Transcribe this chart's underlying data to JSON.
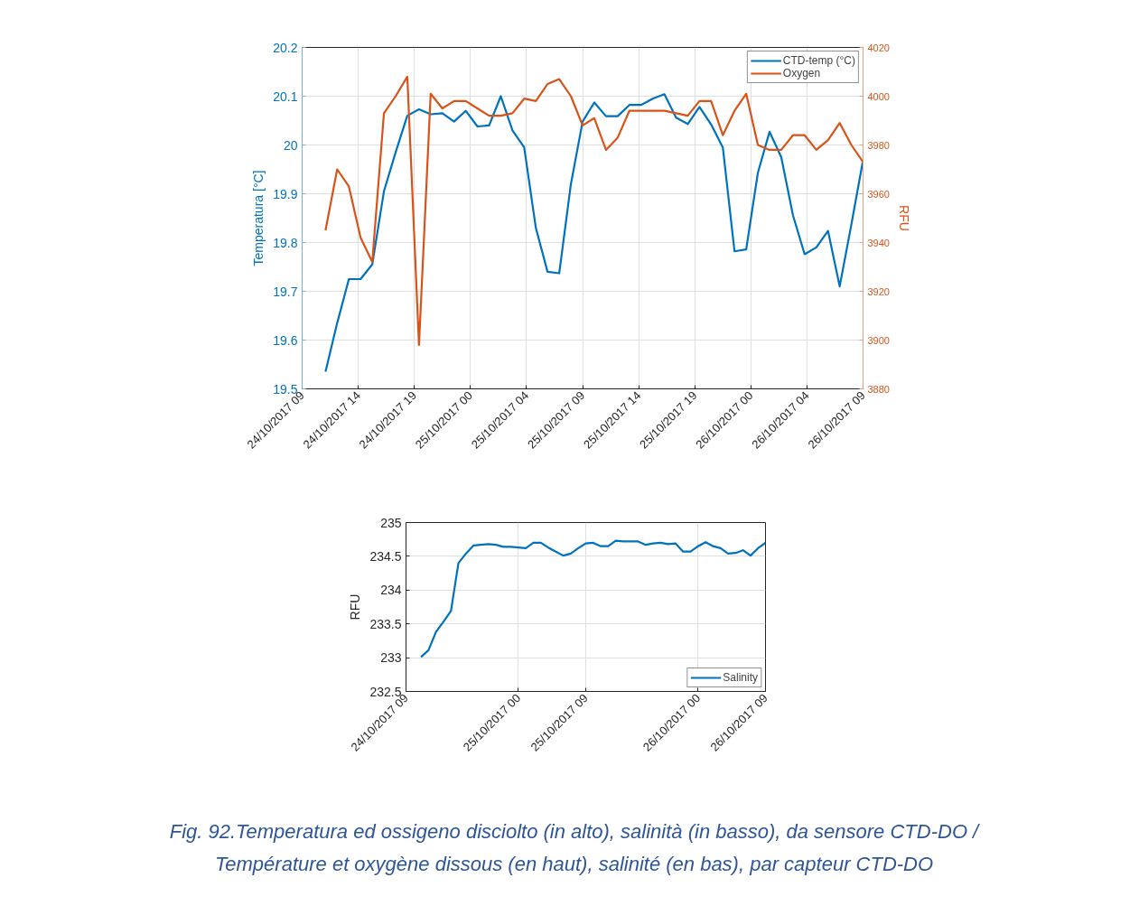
{
  "chart_data": [
    {
      "type": "line",
      "x": [
        "2017-10-24T11:00",
        "2017-10-24T12:00",
        "2017-10-24T13:00",
        "2017-10-24T14:00",
        "2017-10-24T15:00",
        "2017-10-24T16:00",
        "2017-10-24T17:00",
        "2017-10-24T18:00",
        "2017-10-24T19:00",
        "2017-10-24T20:00",
        "2017-10-24T21:00",
        "2017-10-24T22:00",
        "2017-10-24T23:00",
        "2017-10-25T00:00",
        "2017-10-25T01:00",
        "2017-10-25T02:00",
        "2017-10-25T03:00",
        "2017-10-25T04:00",
        "2017-10-25T05:00",
        "2017-10-25T06:00",
        "2017-10-25T07:00",
        "2017-10-25T08:00",
        "2017-10-25T09:00",
        "2017-10-25T10:00",
        "2017-10-25T11:00",
        "2017-10-25T12:00",
        "2017-10-25T13:00",
        "2017-10-25T14:00",
        "2017-10-25T15:00",
        "2017-10-25T16:00",
        "2017-10-25T17:00",
        "2017-10-25T18:00",
        "2017-10-25T19:00",
        "2017-10-25T20:00",
        "2017-10-25T21:00",
        "2017-10-25T22:00",
        "2017-10-25T23:00",
        "2017-10-26T00:00",
        "2017-10-26T01:00",
        "2017-10-26T02:00",
        "2017-10-26T03:00",
        "2017-10-26T04:00",
        "2017-10-26T05:00",
        "2017-10-26T06:00",
        "2017-10-26T07:00",
        "2017-10-26T08:00",
        "2017-10-26T09:00"
      ],
      "xlim": [
        "2017-10-24T09:00",
        "2017-10-26T09:00"
      ],
      "xticks": [
        {
          "value": "2017-10-24T09:00",
          "label": "24/10/2017 09"
        },
        {
          "value": "2017-10-24T13:48",
          "label": "24/10/2017 14"
        },
        {
          "value": "2017-10-24T18:36",
          "label": "24/10/2017 19"
        },
        {
          "value": "2017-10-24T23:24",
          "label": "25/10/2017 00"
        },
        {
          "value": "2017-10-25T04:12",
          "label": "25/10/2017 04"
        },
        {
          "value": "2017-10-25T09:00",
          "label": "25/10/2017 09"
        },
        {
          "value": "2017-10-25T13:48",
          "label": "25/10/2017 14"
        },
        {
          "value": "2017-10-25T18:36",
          "label": "25/10/2017 19"
        },
        {
          "value": "2017-10-25T23:24",
          "label": "26/10/2017 00"
        },
        {
          "value": "2017-10-26T04:12",
          "label": "26/10/2017 04"
        },
        {
          "value": "2017-10-26T09:00",
          "label": "26/10/2017 09"
        }
      ],
      "ylim": [
        19.5,
        20.2
      ],
      "yticks": [
        19.5,
        19.6,
        19.7,
        19.8,
        19.9,
        20,
        20.1,
        20.2
      ],
      "y2lim": [
        3880,
        4020
      ],
      "y2ticks": [
        3880,
        3900,
        3920,
        3940,
        3960,
        3980,
        4000,
        4020
      ],
      "ylabel": "Temperatura [°C]",
      "y2label": "RFU",
      "series": [
        {
          "name": "CTD-temp (°C)",
          "color": "#0072bd",
          "values": [
            19.535,
            19.635,
            19.725,
            19.725,
            19.755,
            19.905,
            19.985,
            20.06,
            20.073,
            20.063,
            20.065,
            20.048,
            20.07,
            20.038,
            20.04,
            20.1,
            20.03,
            19.995,
            19.83,
            19.74,
            19.737,
            19.92,
            20.048,
            20.087,
            20.059,
            20.059,
            20.082,
            20.082,
            20.095,
            20.104,
            20.056,
            20.043,
            20.078,
            20.042,
            19.995,
            19.782,
            19.786,
            19.943,
            20.027,
            19.975,
            19.856,
            19.776,
            19.79,
            19.824,
            19.71,
            19.837,
            19.969
          ]
        },
        {
          "name": "Oxygen",
          "color": "#d95319",
          "axis": "y2",
          "values": [
            3945,
            3970,
            3963,
            3942,
            3932,
            3993,
            4000,
            4008,
            3898,
            4001,
            3995,
            3998,
            3998,
            3995,
            3992,
            3992,
            3993,
            3999,
            3998,
            4005,
            4007,
            4000,
            3988,
            3991,
            3978,
            3983,
            3994,
            3994,
            3994,
            3994,
            3993,
            3992,
            3998,
            3998,
            3984,
            3994,
            4001,
            3980,
            3978,
            3978,
            3984,
            3984,
            3978,
            3982,
            3989,
            3980,
            3973
          ]
        }
      ],
      "grid": true,
      "legend": "top right"
    },
    {
      "type": "line",
      "x": [
        "2017-10-24T11:00",
        "2017-10-24T12:00",
        "2017-10-24T13:00",
        "2017-10-24T14:00",
        "2017-10-24T15:00",
        "2017-10-24T16:00",
        "2017-10-24T17:00",
        "2017-10-24T18:00",
        "2017-10-24T19:00",
        "2017-10-24T20:00",
        "2017-10-24T21:00",
        "2017-10-24T22:00",
        "2017-10-24T23:00",
        "2017-10-25T00:00",
        "2017-10-25T01:00",
        "2017-10-25T02:00",
        "2017-10-25T03:00",
        "2017-10-25T04:00",
        "2017-10-25T05:00",
        "2017-10-25T06:00",
        "2017-10-25T07:00",
        "2017-10-25T08:00",
        "2017-10-25T09:00",
        "2017-10-25T10:00",
        "2017-10-25T11:00",
        "2017-10-25T12:00",
        "2017-10-25T13:00",
        "2017-10-25T14:00",
        "2017-10-25T15:00",
        "2017-10-25T16:00",
        "2017-10-25T17:00",
        "2017-10-25T18:00",
        "2017-10-25T19:00",
        "2017-10-25T20:00",
        "2017-10-25T21:00",
        "2017-10-25T22:00",
        "2017-10-25T23:00",
        "2017-10-26T00:00",
        "2017-10-26T01:00",
        "2017-10-26T02:00",
        "2017-10-26T03:00",
        "2017-10-26T04:00",
        "2017-10-26T05:00",
        "2017-10-26T06:00",
        "2017-10-26T07:00",
        "2017-10-26T08:00",
        "2017-10-26T09:00"
      ],
      "xlim": [
        "2017-10-24T09:00",
        "2017-10-26T09:00"
      ],
      "xticks": [
        {
          "value": "2017-10-24T09:00",
          "label": "24/10/2017 09"
        },
        {
          "value": "2017-10-25T00:00",
          "label": "25/10/2017 00"
        },
        {
          "value": "2017-10-25T09:00",
          "label": "25/10/2017 09"
        },
        {
          "value": "2017-10-26T00:00",
          "label": "26/10/2017 00"
        },
        {
          "value": "2017-10-26T09:00",
          "label": "26/10/2017 09"
        }
      ],
      "ylim": [
        232.5,
        235
      ],
      "yticks": [
        232.5,
        233,
        233.5,
        234,
        234.5,
        235
      ],
      "ylabel": "RFU",
      "series": [
        {
          "name": "Salinity",
          "color": "#0072bd",
          "values": [
            233.01,
            233.11,
            233.38,
            233.53,
            233.69,
            234.4,
            234.54,
            234.66,
            234.67,
            234.68,
            234.67,
            234.64,
            234.64,
            234.63,
            234.62,
            234.7,
            234.7,
            234.63,
            234.57,
            234.51,
            234.54,
            234.62,
            234.69,
            234.7,
            234.65,
            234.65,
            234.73,
            234.72,
            234.72,
            234.72,
            234.67,
            234.69,
            234.7,
            234.68,
            234.69,
            234.57,
            234.57,
            234.65,
            234.71,
            234.65,
            234.62,
            234.54,
            234.55,
            234.59,
            234.51,
            234.62,
            234.7
          ]
        }
      ],
      "grid": true,
      "legend": "bottom right",
      "annotations": [
        "Fig. 92.Temperatura ed ossigeno disciolto (in alto), salinità (in basso), da sensore CTD-DO /",
        "Température et oxygène dissous (en haut), salinité (en bas), par capteur CTD-DO"
      ]
    }
  ]
}
